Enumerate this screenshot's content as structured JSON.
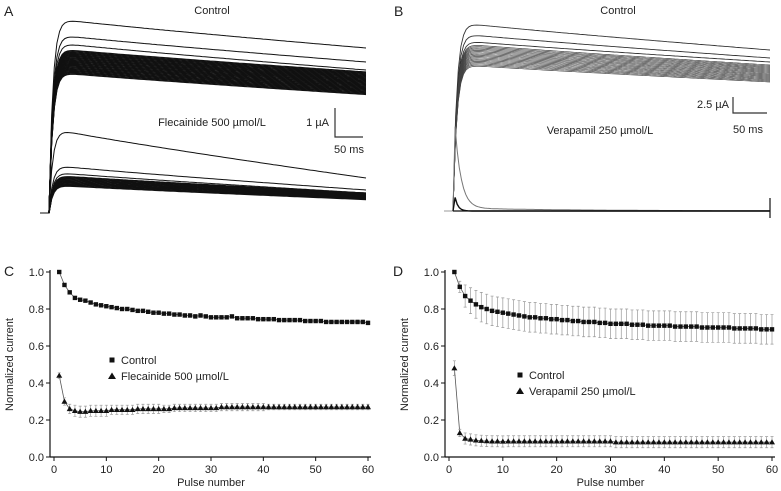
{
  "panels": {
    "A": {
      "letter": "A",
      "top_label": "Control",
      "bottom_label": "Flecainide 500 µmol/L",
      "scale_current": "1 µA",
      "scale_time": "50 ms"
    },
    "B": {
      "letter": "B",
      "top_label": "Control",
      "bottom_label": "Verapamil 250 µmol/L",
      "scale_current": "2.5 µA",
      "scale_time": "50 ms"
    }
  },
  "chart_data": [
    {
      "panel": "C",
      "type": "line",
      "xlabel": "Pulse number",
      "ylabel": "Normalized current",
      "xlim": [
        0,
        60
      ],
      "ylim": [
        0,
        1.0
      ],
      "xticks": [
        "0",
        "10",
        "20",
        "30",
        "40",
        "50",
        "60"
      ],
      "yticks": [
        "0.0",
        "0.2",
        "0.4",
        "0.6",
        "0.8",
        "1.0"
      ],
      "legend_placement": "center-left",
      "x_start": 1,
      "series": [
        {
          "name": "Control",
          "marker": "square",
          "values": [
            1.0,
            0.93,
            0.89,
            0.86,
            0.85,
            0.845,
            0.835,
            0.825,
            0.82,
            0.815,
            0.81,
            0.805,
            0.8,
            0.8,
            0.795,
            0.79,
            0.79,
            0.785,
            0.78,
            0.78,
            0.775,
            0.775,
            0.77,
            0.77,
            0.765,
            0.765,
            0.76,
            0.765,
            0.76,
            0.755,
            0.755,
            0.755,
            0.755,
            0.76,
            0.75,
            0.75,
            0.75,
            0.75,
            0.745,
            0.745,
            0.745,
            0.745,
            0.74,
            0.74,
            0.74,
            0.74,
            0.74,
            0.735,
            0.735,
            0.735,
            0.735,
            0.73,
            0.73,
            0.73,
            0.73,
            0.73,
            0.73,
            0.73,
            0.73,
            0.725
          ],
          "error": [
            0,
            0.005,
            0.005,
            0.005,
            0.005,
            0.005,
            0.005,
            0.005,
            0.005,
            0.005,
            0.005,
            0.005,
            0.005,
            0.005,
            0.005,
            0.005,
            0.005,
            0.005,
            0.005,
            0.005,
            0.005,
            0.005,
            0.005,
            0.005,
            0.01,
            0.01,
            0.01,
            0.01,
            0.005,
            0.005,
            0.005,
            0.005,
            0.005,
            0.005,
            0.005,
            0.005,
            0.005,
            0.005,
            0.005,
            0.005,
            0.005,
            0.005,
            0.005,
            0.005,
            0.005,
            0.005,
            0.005,
            0.005,
            0.005,
            0.005,
            0.005,
            0.005,
            0.005,
            0.005,
            0.005,
            0.005,
            0.005,
            0.01,
            0.01,
            0.01
          ]
        },
        {
          "name": "Flecainide 500 µmol/L",
          "marker": "triangle",
          "values": [
            0.44,
            0.3,
            0.26,
            0.25,
            0.245,
            0.245,
            0.25,
            0.25,
            0.25,
            0.25,
            0.255,
            0.255,
            0.255,
            0.255,
            0.255,
            0.26,
            0.26,
            0.26,
            0.26,
            0.26,
            0.26,
            0.26,
            0.265,
            0.265,
            0.265,
            0.265,
            0.265,
            0.265,
            0.265,
            0.265,
            0.265,
            0.27,
            0.27,
            0.27,
            0.27,
            0.27,
            0.27,
            0.27,
            0.27,
            0.27,
            0.27,
            0.27,
            0.27,
            0.27,
            0.27,
            0.27,
            0.27,
            0.27,
            0.27,
            0.27,
            0.27,
            0.27,
            0.27,
            0.27,
            0.27,
            0.27,
            0.27,
            0.27,
            0.27,
            0.27
          ],
          "error": [
            0.015,
            0.02,
            0.025,
            0.03,
            0.03,
            0.03,
            0.03,
            0.03,
            0.03,
            0.03,
            0.025,
            0.025,
            0.025,
            0.025,
            0.025,
            0.025,
            0.025,
            0.025,
            0.025,
            0.025,
            0.02,
            0.02,
            0.02,
            0.02,
            0.02,
            0.02,
            0.02,
            0.02,
            0.02,
            0.02,
            0.02,
            0.02,
            0.02,
            0.02,
            0.02,
            0.02,
            0.02,
            0.02,
            0.02,
            0.02,
            0.015,
            0.015,
            0.015,
            0.015,
            0.015,
            0.015,
            0.015,
            0.015,
            0.015,
            0.015,
            0.015,
            0.015,
            0.015,
            0.015,
            0.015,
            0.015,
            0.015,
            0.015,
            0.015,
            0.015
          ]
        }
      ]
    },
    {
      "panel": "D",
      "type": "line",
      "xlabel": "Pulse number",
      "ylabel": "Normalized current",
      "xlim": [
        0,
        60
      ],
      "ylim": [
        0,
        1.0
      ],
      "xticks": [
        "0",
        "10",
        "20",
        "30",
        "40",
        "50",
        "60"
      ],
      "yticks": [
        "0.0",
        "0.2",
        "0.4",
        "0.6",
        "0.8",
        "1.0"
      ],
      "legend_placement": "center-left",
      "x_start": 1,
      "series": [
        {
          "name": "Control",
          "marker": "square",
          "values": [
            1.0,
            0.92,
            0.87,
            0.845,
            0.825,
            0.81,
            0.8,
            0.79,
            0.785,
            0.78,
            0.775,
            0.77,
            0.765,
            0.76,
            0.755,
            0.755,
            0.75,
            0.75,
            0.745,
            0.745,
            0.74,
            0.74,
            0.735,
            0.735,
            0.73,
            0.73,
            0.73,
            0.725,
            0.725,
            0.72,
            0.72,
            0.72,
            0.72,
            0.715,
            0.715,
            0.715,
            0.71,
            0.71,
            0.71,
            0.71,
            0.71,
            0.705,
            0.705,
            0.705,
            0.705,
            0.705,
            0.7,
            0.7,
            0.7,
            0.7,
            0.7,
            0.7,
            0.695,
            0.695,
            0.695,
            0.695,
            0.695,
            0.69,
            0.69,
            0.69
          ],
          "error": [
            0,
            0.03,
            0.06,
            0.07,
            0.075,
            0.08,
            0.08,
            0.08,
            0.08,
            0.08,
            0.08,
            0.08,
            0.08,
            0.08,
            0.08,
            0.08,
            0.08,
            0.08,
            0.08,
            0.08,
            0.08,
            0.08,
            0.08,
            0.08,
            0.08,
            0.08,
            0.08,
            0.08,
            0.08,
            0.08,
            0.08,
            0.08,
            0.08,
            0.08,
            0.08,
            0.08,
            0.08,
            0.08,
            0.08,
            0.08,
            0.08,
            0.08,
            0.08,
            0.08,
            0.08,
            0.08,
            0.08,
            0.08,
            0.08,
            0.08,
            0.08,
            0.08,
            0.08,
            0.08,
            0.08,
            0.08,
            0.08,
            0.08,
            0.08,
            0.08
          ]
        },
        {
          "name": "Verapamil 250 µmol/L",
          "marker": "triangle",
          "values": [
            0.48,
            0.13,
            0.1,
            0.095,
            0.09,
            0.088,
            0.086,
            0.085,
            0.085,
            0.084,
            0.085,
            0.085,
            0.085,
            0.085,
            0.085,
            0.085,
            0.085,
            0.085,
            0.085,
            0.085,
            0.085,
            0.085,
            0.085,
            0.085,
            0.085,
            0.085,
            0.085,
            0.085,
            0.085,
            0.085,
            0.08,
            0.08,
            0.08,
            0.08,
            0.08,
            0.08,
            0.08,
            0.08,
            0.08,
            0.08,
            0.08,
            0.08,
            0.08,
            0.08,
            0.08,
            0.08,
            0.08,
            0.08,
            0.08,
            0.08,
            0.08,
            0.08,
            0.08,
            0.08,
            0.08,
            0.08,
            0.08,
            0.08,
            0.08,
            0.08
          ],
          "error": [
            0.04,
            0.02,
            0.03,
            0.03,
            0.03,
            0.03,
            0.03,
            0.03,
            0.03,
            0.03,
            0.03,
            0.03,
            0.03,
            0.03,
            0.03,
            0.03,
            0.03,
            0.03,
            0.03,
            0.03,
            0.03,
            0.03,
            0.03,
            0.03,
            0.03,
            0.03,
            0.03,
            0.03,
            0.03,
            0.03,
            0.03,
            0.03,
            0.03,
            0.03,
            0.03,
            0.03,
            0.03,
            0.03,
            0.03,
            0.03,
            0.03,
            0.03,
            0.03,
            0.03,
            0.03,
            0.03,
            0.03,
            0.03,
            0.03,
            0.03,
            0.03,
            0.03,
            0.03,
            0.03,
            0.03,
            0.03,
            0.03,
            0.03,
            0.03,
            0.03
          ]
        }
      ]
    }
  ]
}
